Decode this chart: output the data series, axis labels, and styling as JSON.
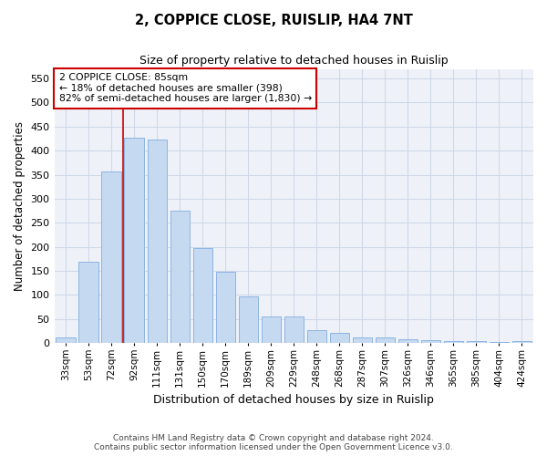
{
  "title": "2, COPPICE CLOSE, RUISLIP, HA4 7NT",
  "subtitle": "Size of property relative to detached houses in Ruislip",
  "xlabel": "Distribution of detached houses by size in Ruislip",
  "ylabel": "Number of detached properties",
  "categories": [
    "33sqm",
    "53sqm",
    "72sqm",
    "92sqm",
    "111sqm",
    "131sqm",
    "150sqm",
    "170sqm",
    "189sqm",
    "209sqm",
    "229sqm",
    "248sqm",
    "268sqm",
    "287sqm",
    "307sqm",
    "326sqm",
    "346sqm",
    "365sqm",
    "385sqm",
    "404sqm",
    "424sqm"
  ],
  "values": [
    12,
    168,
    357,
    427,
    424,
    275,
    198,
    148,
    96,
    55,
    55,
    27,
    20,
    11,
    11,
    7,
    5,
    4,
    4,
    1,
    4
  ],
  "bar_color": "#c5d9f1",
  "bar_edge_color": "#8db4e2",
  "annotation_text_line1": "2 COPPICE CLOSE: 85sqm",
  "annotation_text_line2": "← 18% of detached houses are smaller (398)",
  "annotation_text_line3": "82% of semi-detached houses are larger (1,830) →",
  "annotation_box_color": "#ffffff",
  "annotation_box_edge": "#cc0000",
  "vline_color": "#cc0000",
  "vline_x": 2.5,
  "ylim": [
    0,
    570
  ],
  "yticks": [
    0,
    50,
    100,
    150,
    200,
    250,
    300,
    350,
    400,
    450,
    500,
    550
  ],
  "grid_color": "#d0d8e8",
  "footer_line1": "Contains HM Land Registry data © Crown copyright and database right 2024.",
  "footer_line2": "Contains public sector information licensed under the Open Government Licence v3.0.",
  "bg_color": "#ffffff",
  "plot_bg_color": "#eef2f8"
}
